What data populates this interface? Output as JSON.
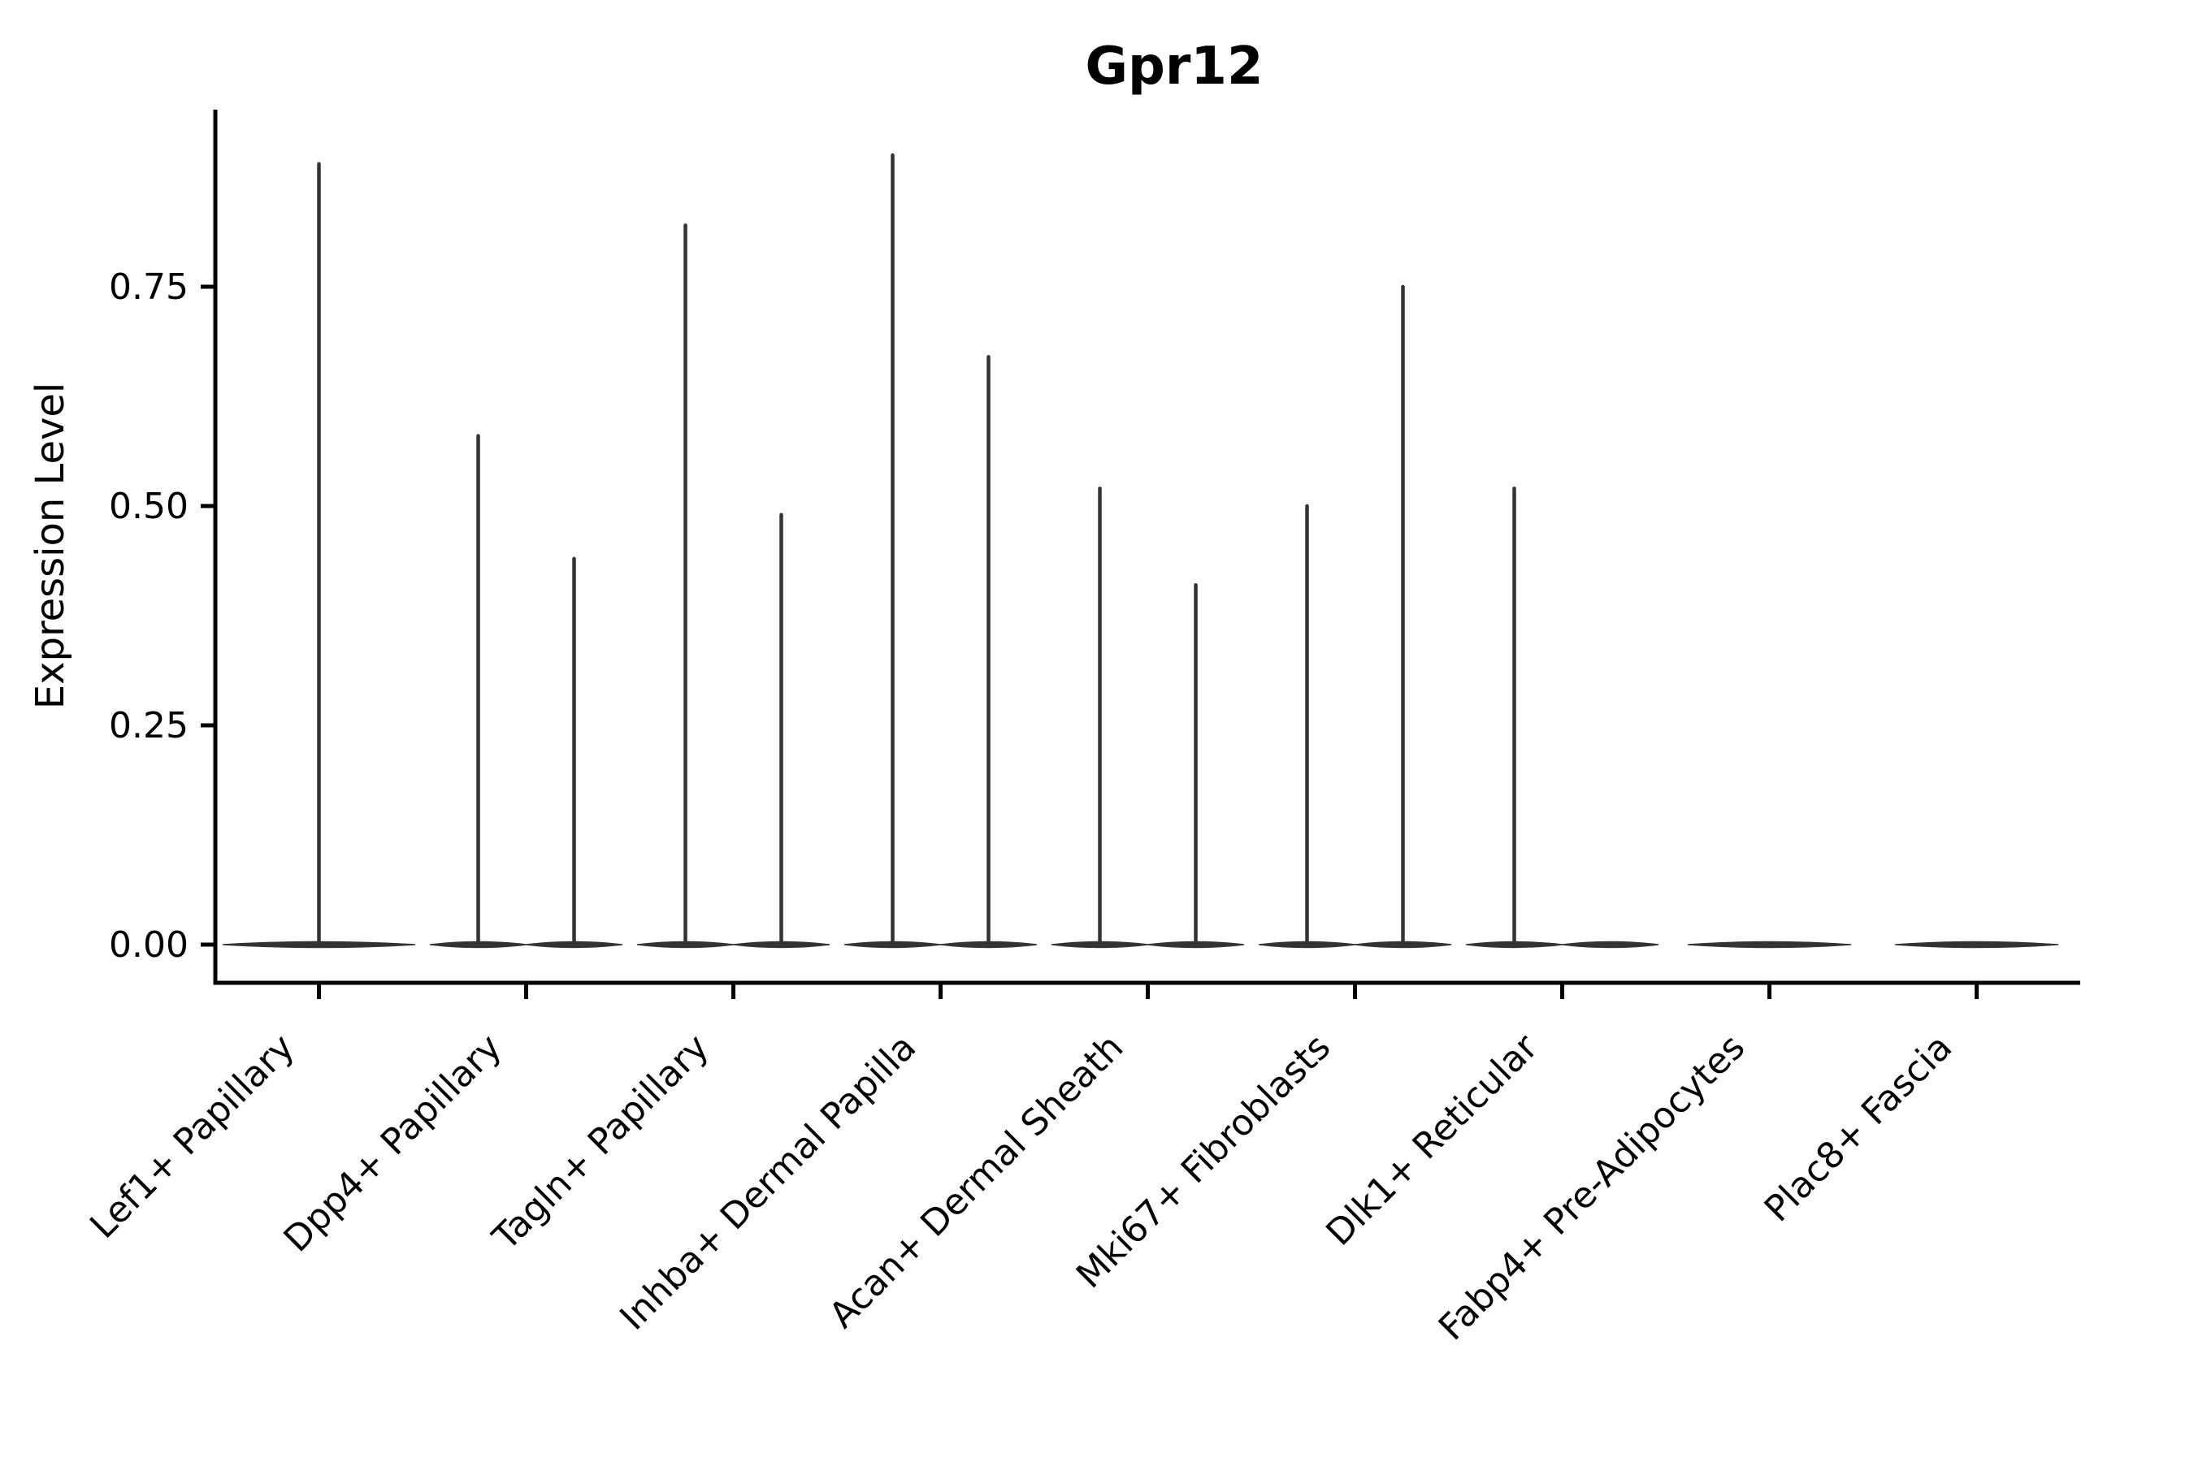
{
  "chart_data": {
    "type": "violin",
    "title": "Gpr12",
    "ylabel": "Expression Level",
    "xlabel": "",
    "yticks": [
      0.0,
      0.25,
      0.5,
      0.75
    ],
    "ytick_labels": [
      "0.00",
      "0.25",
      "0.50",
      "0.75"
    ],
    "ylim": [
      0,
      0.95
    ],
    "x_tick_rotation": 45,
    "grid": "off",
    "legend": "none",
    "categories": [
      "Lef1+ Papillary",
      "Dpp4+ Papillary",
      "Tagln+ Papillary",
      "Inhba+ Dermal Papilla",
      "Acan+ Dermal Sheath",
      "Mki67+ Fibroblasts",
      "Dlk1+ Reticular",
      "Fabp4+ Pre-Adipocytes",
      "Plac8+ Fascia"
    ],
    "series": [
      {
        "category": "Lef1+ Papillary",
        "violins": [
          {
            "pos": "center",
            "max": 0.89
          }
        ]
      },
      {
        "category": "Dpp4+ Papillary",
        "violins": [
          {
            "pos": "left",
            "max": 0.58
          },
          {
            "pos": "right",
            "max": 0.44
          }
        ]
      },
      {
        "category": "Tagln+ Papillary",
        "violins": [
          {
            "pos": "left",
            "max": 0.82
          },
          {
            "pos": "right",
            "max": 0.49
          }
        ]
      },
      {
        "category": "Inhba+ Dermal Papilla",
        "violins": [
          {
            "pos": "left",
            "max": 0.9
          },
          {
            "pos": "right",
            "max": 0.67
          }
        ]
      },
      {
        "category": "Acan+ Dermal Sheath",
        "violins": [
          {
            "pos": "left",
            "max": 0.52
          },
          {
            "pos": "right",
            "max": 0.41
          }
        ]
      },
      {
        "category": "Mki67+ Fibroblasts",
        "violins": [
          {
            "pos": "left",
            "max": 0.5
          },
          {
            "pos": "right",
            "max": 0.75
          }
        ]
      },
      {
        "category": "Dlk1+ Reticular",
        "violins": [
          {
            "pos": "left",
            "max": 0.52
          },
          {
            "pos": "right",
            "max": 0.0
          }
        ]
      },
      {
        "category": "Fabp4+ Pre-Adipocytes",
        "violins": [
          {
            "pos": "center",
            "max": 0.0
          }
        ]
      },
      {
        "category": "Plac8+ Fascia",
        "violins": [
          {
            "pos": "center",
            "max": 0.0
          }
        ]
      }
    ],
    "colors": {
      "violin": "#333333",
      "axis": "#000000",
      "text": "#000000",
      "background": "#ffffff"
    }
  }
}
